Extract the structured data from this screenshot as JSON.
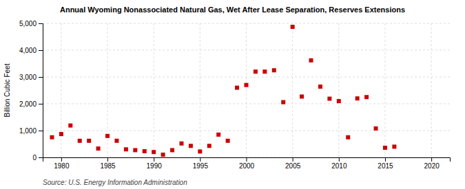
{
  "chart_data": {
    "type": "scatter",
    "title": "Annual Wyoming Nonassociated Natural Gas, Wet After Lease Separation, Reserves Extensions",
    "ylabel": "Billion Cubic Feet",
    "source": "Source: U.S. Energy Information Administration",
    "color": "#cc0000",
    "marker": "square",
    "grid": true,
    "xlim": [
      1978,
      2022
    ],
    "ylim": [
      0,
      5000
    ],
    "xticks": [
      1980,
      1985,
      1990,
      1995,
      2000,
      2005,
      2010,
      2015,
      2020
    ],
    "yticks": [
      0,
      {
        "value": 1000,
        "label": "1,000"
      },
      {
        "value": 2000,
        "label": "2,000"
      },
      {
        "value": 3000,
        "label": "3,000"
      },
      {
        "value": 4000,
        "label": "4,000"
      },
      {
        "value": 5000,
        "label": "5,000"
      }
    ],
    "x": [
      1979,
      1980,
      1981,
      1982,
      1983,
      1984,
      1985,
      1986,
      1987,
      1988,
      1989,
      1990,
      1991,
      1992,
      1993,
      1994,
      1995,
      1996,
      1997,
      1998,
      1999,
      2000,
      2001,
      2002,
      2003,
      2004,
      2005,
      2006,
      2007,
      2008,
      2009,
      2010,
      2011,
      2012,
      2013,
      2014,
      2015,
      2016
    ],
    "values": [
      750,
      870,
      1190,
      620,
      620,
      330,
      800,
      620,
      300,
      270,
      230,
      200,
      100,
      270,
      520,
      430,
      220,
      430,
      850,
      620,
      2600,
      2700,
      3200,
      3200,
      3250,
      2060,
      4870,
      2270,
      3620,
      2640,
      2190,
      2100,
      750,
      2200,
      2250,
      1080,
      360,
      400
    ]
  }
}
